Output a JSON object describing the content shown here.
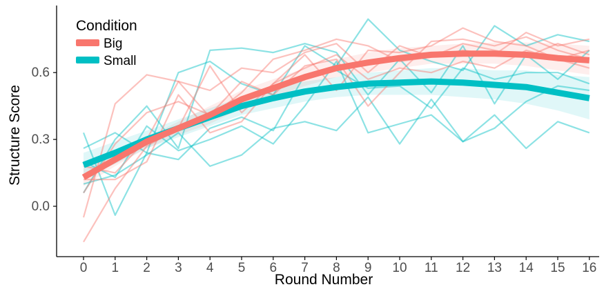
{
  "chart_data": {
    "type": "line",
    "title": "",
    "xlabel": "Round Number",
    "ylabel": "Structure Score",
    "x": [
      0,
      1,
      2,
      3,
      4,
      5,
      6,
      7,
      8,
      9,
      10,
      11,
      12,
      13,
      14,
      15,
      16
    ],
    "x_tick_labels": [
      "0",
      "1",
      "2",
      "3",
      "4",
      "5",
      "6",
      "7",
      "8",
      "9",
      "10",
      "11",
      "12",
      "13",
      "14",
      "15",
      "16"
    ],
    "xlim": [
      -0.5,
      16.5
    ],
    "ylim": [
      -0.2,
      0.88
    ],
    "y_ticks": [
      0.0,
      0.3,
      0.6
    ],
    "y_tick_labels": [
      "0.0",
      "0.3",
      "0.6"
    ],
    "grid": false,
    "legend": {
      "title": "Condition",
      "placement": "top-left",
      "entries": [
        {
          "label": "Big",
          "color": "#F8766D"
        },
        {
          "label": "Small",
          "color": "#00BFC4"
        }
      ]
    },
    "series": [
      {
        "name": "Big",
        "color": "#F8766D",
        "fit": [
          0.13,
          0.21,
          0.29,
          0.35,
          0.41,
          0.48,
          0.53,
          0.58,
          0.62,
          0.645,
          0.665,
          0.68,
          0.685,
          0.685,
          0.68,
          0.665,
          0.655
        ],
        "ci_upper": [
          0.17,
          0.24,
          0.31,
          0.38,
          0.45,
          0.52,
          0.57,
          0.62,
          0.66,
          0.69,
          0.71,
          0.72,
          0.73,
          0.735,
          0.735,
          0.73,
          0.72
        ],
        "ci_lower": [
          0.09,
          0.18,
          0.26,
          0.32,
          0.37,
          0.44,
          0.49,
          0.54,
          0.58,
          0.6,
          0.62,
          0.64,
          0.64,
          0.64,
          0.63,
          0.61,
          0.59
        ],
        "participants": [
          [
            -0.16,
            0.08,
            0.27,
            0.35,
            0.63,
            0.42,
            0.55,
            0.62,
            0.68,
            0.57,
            0.62,
            0.6,
            0.65,
            0.62,
            0.7,
            0.66,
            0.7
          ],
          [
            -0.05,
            0.46,
            0.59,
            0.56,
            0.52,
            0.62,
            0.6,
            0.69,
            0.73,
            0.6,
            0.72,
            0.67,
            0.7,
            0.68,
            0.78,
            0.72,
            0.75
          ],
          [
            0.12,
            0.12,
            0.2,
            0.5,
            0.33,
            0.38,
            0.55,
            0.68,
            0.52,
            0.7,
            0.69,
            0.72,
            0.8,
            0.74,
            0.72,
            0.66,
            0.62
          ],
          [
            0.06,
            0.28,
            0.42,
            0.47,
            0.41,
            0.56,
            0.5,
            0.63,
            0.66,
            0.45,
            0.6,
            0.74,
            0.75,
            0.72,
            0.76,
            0.7,
            0.66
          ],
          [
            0.18,
            0.15,
            0.3,
            0.56,
            0.4,
            0.51,
            0.66,
            0.7,
            0.75,
            0.72,
            0.65,
            0.67,
            0.73,
            0.7,
            0.67,
            0.73,
            0.68
          ]
        ]
      },
      {
        "name": "Small",
        "color": "#00BFC4",
        "fit": [
          0.185,
          0.24,
          0.3,
          0.35,
          0.4,
          0.45,
          0.485,
          0.515,
          0.535,
          0.55,
          0.555,
          0.56,
          0.555,
          0.545,
          0.535,
          0.51,
          0.485
        ],
        "ci_upper": [
          0.24,
          0.29,
          0.34,
          0.39,
          0.44,
          0.49,
          0.53,
          0.56,
          0.58,
          0.6,
          0.61,
          0.62,
          0.62,
          0.61,
          0.61,
          0.59,
          0.58
        ],
        "ci_lower": [
          0.13,
          0.19,
          0.26,
          0.31,
          0.36,
          0.41,
          0.44,
          0.47,
          0.49,
          0.5,
          0.5,
          0.5,
          0.49,
          0.48,
          0.46,
          0.43,
          0.39
        ],
        "participants": [
          [
            0.33,
            -0.04,
            0.24,
            0.6,
            0.65,
            0.55,
            0.5,
            0.72,
            0.63,
            0.84,
            0.7,
            0.65,
            0.61,
            0.81,
            0.72,
            0.77,
            0.74
          ],
          [
            0.06,
            0.3,
            0.45,
            0.26,
            0.7,
            0.71,
            0.69,
            0.73,
            0.69,
            0.5,
            0.66,
            0.51,
            0.72,
            0.46,
            0.68,
            0.57,
            0.7
          ],
          [
            0.1,
            0.14,
            0.23,
            0.33,
            0.18,
            0.23,
            0.35,
            0.38,
            0.34,
            0.49,
            0.28,
            0.48,
            0.29,
            0.41,
            0.26,
            0.38,
            0.33
          ],
          [
            0.2,
            0.13,
            0.36,
            0.25,
            0.3,
            0.36,
            0.28,
            0.45,
            0.65,
            0.33,
            0.37,
            0.41,
            0.29,
            0.35,
            0.47,
            0.54,
            0.52
          ],
          [
            0.26,
            0.33,
            0.24,
            0.21,
            0.35,
            0.4,
            0.34,
            0.59,
            0.61,
            0.53,
            0.54,
            0.44,
            0.62,
            0.57,
            0.6,
            0.6,
            0.55
          ]
        ]
      }
    ]
  }
}
